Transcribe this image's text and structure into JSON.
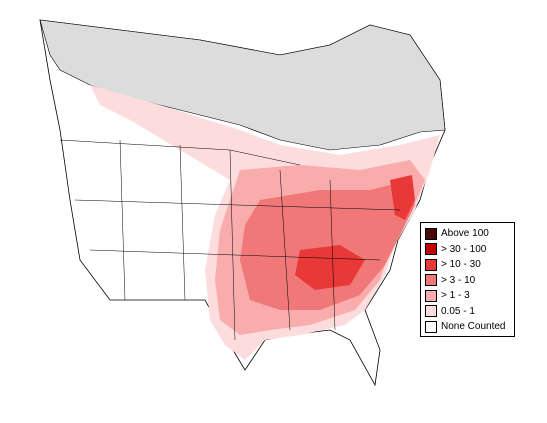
{
  "legend": {
    "items": [
      {
        "label": "Above 100",
        "color": "#4a0a0a"
      },
      {
        "label": "> 30 - 100",
        "color": "#c00000"
      },
      {
        "label": "> 10 - 30",
        "color": "#e83838"
      },
      {
        "label": "> 3 - 10",
        "color": "#f07878"
      },
      {
        "label": "> 1 - 3",
        "color": "#f8acac"
      },
      {
        "label": "0.05 - 1",
        "color": "#fcdcdc"
      },
      {
        "label": "None Counted",
        "color": "#ffffff"
      }
    ]
  }
}
